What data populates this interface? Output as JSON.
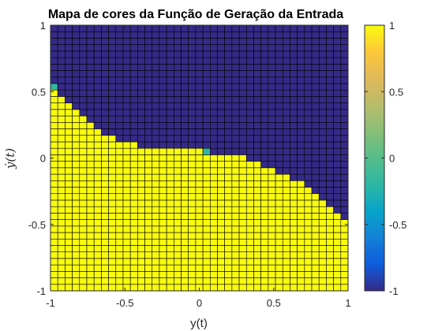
{
  "chart_data": {
    "type": "heatmap",
    "title": "Mapa de cores da Função de Geração da Entrada",
    "xlabel": "y(t)",
    "ylabel": "ẏ(t)",
    "xlim": [
      -1,
      1
    ],
    "ylim": [
      -1,
      1
    ],
    "xticks": [
      "-1",
      "-0.5",
      "0",
      "0.5",
      "1"
    ],
    "yticks": [
      "-1",
      "-0.5",
      "0",
      "0.5",
      "1"
    ],
    "grid_resolution": 41,
    "value_low": -1,
    "value_high": 1,
    "mid_cells": [
      [
        -1.0,
        0.55
      ],
      [
        0.05,
        0.05
      ]
    ],
    "boundary": [
      {
        "x": -1.0,
        "y_max": 0.5
      },
      {
        "x": -0.95,
        "y_max": 0.45
      },
      {
        "x": -0.9,
        "y_max": 0.4
      },
      {
        "x": -0.85,
        "y_max": 0.35
      },
      {
        "x": -0.8,
        "y_max": 0.3
      },
      {
        "x": -0.75,
        "y_max": 0.25
      },
      {
        "x": -0.7,
        "y_max": 0.2
      },
      {
        "x": -0.65,
        "y_max": 0.15
      },
      {
        "x": -0.6,
        "y_max": 0.15
      },
      {
        "x": -0.55,
        "y_max": 0.1
      },
      {
        "x": -0.5,
        "y_max": 0.1
      },
      {
        "x": -0.45,
        "y_max": 0.1
      },
      {
        "x": -0.4,
        "y_max": 0.05
      },
      {
        "x": -0.35,
        "y_max": 0.05
      },
      {
        "x": -0.3,
        "y_max": 0.05
      },
      {
        "x": -0.25,
        "y_max": 0.05
      },
      {
        "x": -0.2,
        "y_max": 0.05
      },
      {
        "x": -0.15,
        "y_max": 0.05
      },
      {
        "x": -0.1,
        "y_max": 0.05
      },
      {
        "x": -0.05,
        "y_max": 0.05
      },
      {
        "x": 0.0,
        "y_max": 0.05
      },
      {
        "x": 0.05,
        "y_max": 0.0
      },
      {
        "x": 0.1,
        "y_max": 0.0
      },
      {
        "x": 0.15,
        "y_max": 0.0
      },
      {
        "x": 0.2,
        "y_max": 0.0
      },
      {
        "x": 0.25,
        "y_max": 0.0
      },
      {
        "x": 0.3,
        "y_max": 0.0
      },
      {
        "x": 0.35,
        "y_max": -0.05
      },
      {
        "x": 0.4,
        "y_max": -0.05
      },
      {
        "x": 0.45,
        "y_max": -0.1
      },
      {
        "x": 0.5,
        "y_max": -0.1
      },
      {
        "x": 0.55,
        "y_max": -0.15
      },
      {
        "x": 0.6,
        "y_max": -0.15
      },
      {
        "x": 0.65,
        "y_max": -0.2
      },
      {
        "x": 0.7,
        "y_max": -0.2
      },
      {
        "x": 0.75,
        "y_max": -0.25
      },
      {
        "x": 0.8,
        "y_max": -0.3
      },
      {
        "x": 0.85,
        "y_max": -0.35
      },
      {
        "x": 0.9,
        "y_max": -0.4
      },
      {
        "x": 0.95,
        "y_max": -0.45
      },
      {
        "x": 1.0,
        "y_max": -0.5
      }
    ],
    "colorbar": {
      "range": [
        -1,
        1
      ],
      "ticks": [
        "-1",
        "-0.5",
        "0",
        "0.5",
        "1"
      ],
      "colormap": "parula"
    },
    "grid": false
  },
  "colors": {
    "low": "#352a87",
    "mid": "#2eb7a4",
    "high": "#f9fb0e",
    "cell_edge": "#000000",
    "axis": "#262626"
  }
}
